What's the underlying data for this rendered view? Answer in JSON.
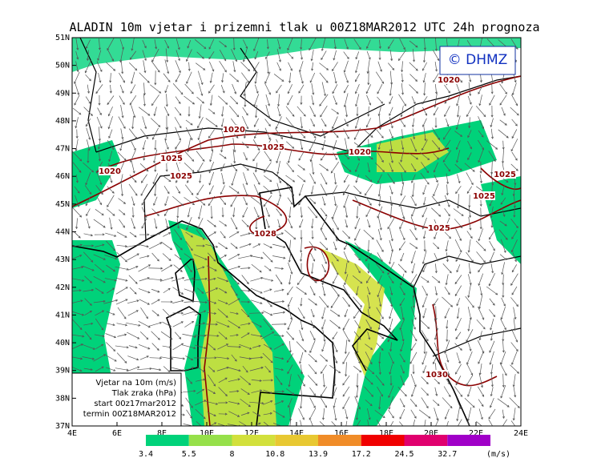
{
  "header": {
    "title": "ALADIN 10m vjetar i prizemni tlak u 00Z18MAR2012 UTC 24h prognoza",
    "logo": "© DHMZ"
  },
  "axes": {
    "latitudes": [
      "37N",
      "38N",
      "39N",
      "40N",
      "41N",
      "42N",
      "43N",
      "44N",
      "45N",
      "46N",
      "47N",
      "48N",
      "49N",
      "50N",
      "51N"
    ],
    "longitudes": [
      "4E",
      "6E",
      "8E",
      "10E",
      "12E",
      "14E",
      "16E",
      "18E",
      "20E",
      "22E",
      "24E"
    ]
  },
  "isobar_labels": [
    "1020",
    "1020",
    "1025",
    "1020",
    "1020",
    "1025",
    "1025",
    "1025",
    "1025",
    "1025",
    "1028",
    "1030"
  ],
  "info_box": [
    "Vjetar na 10m (m/s)",
    "Tlak zraka (hPa)",
    "start 00z17mar2012",
    "termin 00Z18MAR2012"
  ],
  "legend": {
    "labels": [
      "3.4",
      "5.5",
      "8",
      "10.8",
      "13.9",
      "17.2",
      "24.5",
      "32.7"
    ],
    "unit": "(m/s)",
    "colors": [
      "#00d27a",
      "#96e04a",
      "#d2e03c",
      "#e8c832",
      "#f08c28",
      "#f00000",
      "#e0006e",
      "#a000c8"
    ]
  }
}
